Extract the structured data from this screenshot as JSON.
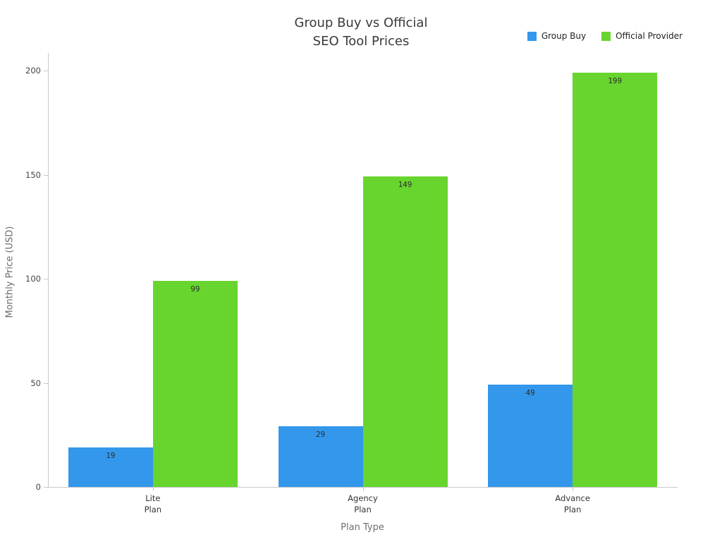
{
  "chart": {
    "title_line1": "Group Buy vs Official",
    "title_line2": "SEO Tool Prices"
  },
  "chart_data": {
    "type": "bar",
    "title": "Group Buy vs Official SEO Tool Prices",
    "categories": [
      "Lite Plan",
      "Agency Plan",
      "Advance Plan"
    ],
    "category_lines": [
      [
        "Lite",
        "Plan"
      ],
      [
        "Agency",
        "Plan"
      ],
      [
        "Advance",
        "Plan"
      ]
    ],
    "series": [
      {
        "name": "Group Buy",
        "color": "#3398ec",
        "values": [
          19,
          29,
          49
        ]
      },
      {
        "name": "Official Provider",
        "color": "#68d52e",
        "values": [
          99,
          149,
          199
        ]
      }
    ],
    "value_labels": [
      "19",
      "29",
      "49",
      "99",
      "149",
      "199"
    ],
    "xlabel": "Plan Type",
    "ylabel": "Monthly Price (USD)",
    "ylim": [
      0,
      200
    ],
    "yticks": [
      0,
      50,
      100,
      150,
      200
    ],
    "grid": false,
    "legend_position": "top-right",
    "axis_color": "#c9c9c9"
  }
}
